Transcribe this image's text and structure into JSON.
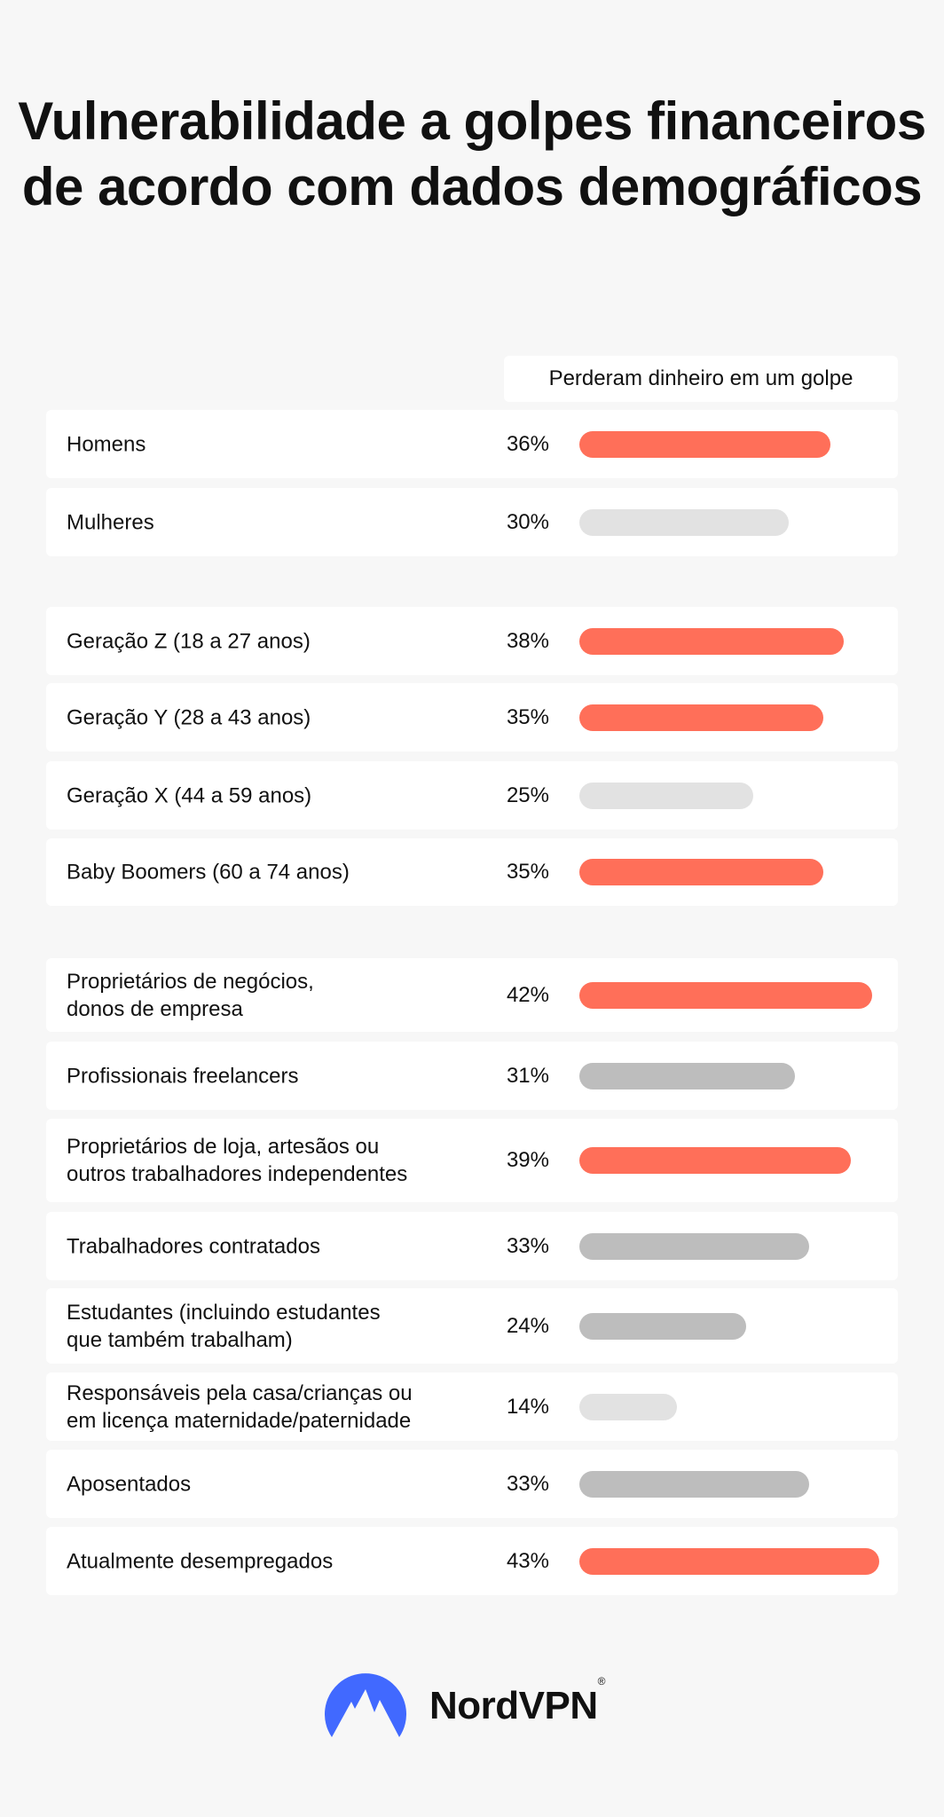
{
  "chart_data": {
    "type": "bar",
    "orientation": "horizontal",
    "title": "Vulnerabilidade a golpes financeiros de acordo com dados demográficos",
    "legend": "Perderam dinheiro em um golpe",
    "unit": "%",
    "xlim": [
      0,
      43
    ],
    "groups": [
      {
        "rows": [
          {
            "label": "Homens",
            "value": 36,
            "display": "36%",
            "color": "#ff6f59"
          },
          {
            "label": "Mulheres",
            "value": 30,
            "display": "30%",
            "color": "#e2e2e2"
          }
        ]
      },
      {
        "rows": [
          {
            "label": "Geração Z (18 a 27 anos)",
            "value": 38,
            "display": "38%",
            "color": "#ff6f59"
          },
          {
            "label": "Geração Y (28 a 43 anos)",
            "value": 35,
            "display": "35%",
            "color": "#ff6f59"
          },
          {
            "label": "Geração X (44 a 59 anos)",
            "value": 25,
            "display": "25%",
            "color": "#e2e2e2"
          },
          {
            "label": "Baby Boomers (60 a 74 anos)",
            "value": 35,
            "display": "35%",
            "color": "#ff6f59"
          }
        ]
      },
      {
        "rows": [
          {
            "label": "Proprietários de negócios,\ndonos de empresa",
            "value": 42,
            "display": "42%",
            "color": "#ff6f59"
          },
          {
            "label": "Profissionais freelancers",
            "value": 31,
            "display": "31%",
            "color": "#bdbdbd"
          },
          {
            "label": "Proprietários de loja, artesãos ou\noutros trabalhadores independentes",
            "value": 39,
            "display": "39%",
            "color": "#ff6f59"
          },
          {
            "label": "Trabalhadores contratados",
            "value": 33,
            "display": "33%",
            "color": "#bdbdbd"
          },
          {
            "label": "Estudantes (incluindo estudantes\nque também trabalham)",
            "value": 24,
            "display": "24%",
            "color": "#bdbdbd"
          },
          {
            "label": "Responsáveis pela casa/crianças ou\nem licença maternidade/paternidade",
            "value": 14,
            "display": "14%",
            "color": "#e2e2e2"
          },
          {
            "label": "Aposentados",
            "value": 33,
            "display": "33%",
            "color": "#bdbdbd"
          },
          {
            "label": "Atualmente desempregados",
            "value": 43,
            "display": "43%",
            "color": "#ff6f59"
          }
        ]
      }
    ]
  },
  "brand": {
    "name": "NordVPN",
    "registered": "®",
    "logo_color": "#4169ff"
  }
}
